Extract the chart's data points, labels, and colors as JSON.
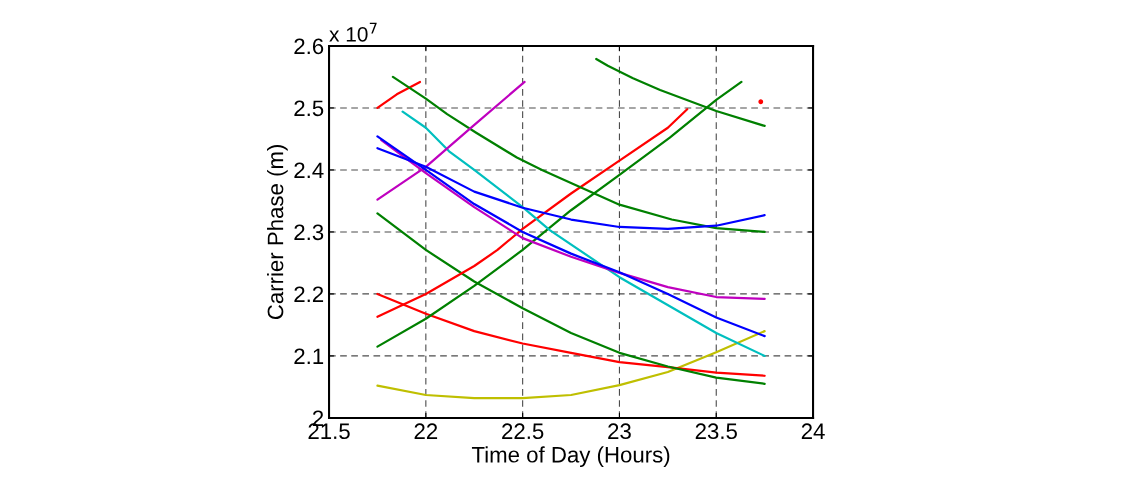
{
  "chart_data": {
    "type": "line",
    "xlabel": "Time of Day (Hours)",
    "ylabel": "Carrier Phase (m)",
    "annotations": [
      "x 10$^{7}$"
    ],
    "xlim": [
      21.5,
      24
    ],
    "xticks": [
      21.5,
      22,
      22.5,
      23,
      23.5,
      24
    ],
    "ylim": [
      2,
      2.6
    ],
    "yticks": [
      2,
      2.1,
      2.2,
      2.3,
      2.4,
      2.5,
      2.6
    ],
    "grid": true,
    "marker": "none",
    "line_style": "solid",
    "series": [
      {
        "color": "#bfbf00",
        "x": [
          21.75,
          22.0,
          22.25,
          22.5,
          22.75,
          23.0,
          23.25,
          23.5,
          23.75
        ],
        "values": [
          2.052,
          2.037,
          2.032,
          2.032,
          2.037,
          2.053,
          2.074,
          2.106,
          2.14
        ]
      },
      {
        "color": "#ff0000",
        "x": [
          21.75,
          22.0,
          22.25,
          22.5,
          22.75,
          23.0,
          23.25,
          23.5,
          23.75
        ],
        "values": [
          2.2,
          2.168,
          2.14,
          2.12,
          2.105,
          2.09,
          2.082,
          2.073,
          2.068
        ]
      },
      {
        "color": "#008000",
        "x": [
          21.75,
          22.0,
          22.25,
          22.5,
          22.75,
          23.0,
          23.25,
          23.5,
          23.75
        ],
        "values": [
          2.33,
          2.271,
          2.22,
          2.177,
          2.137,
          2.105,
          2.083,
          2.065,
          2.055
        ]
      },
      {
        "color": "#ff0000",
        "x": [
          21.75,
          22.0,
          22.25,
          22.37,
          22.5,
          22.75,
          23.0,
          23.25,
          23.35
        ],
        "values": [
          2.163,
          2.2,
          2.245,
          2.271,
          2.305,
          2.362,
          2.415,
          2.468,
          2.498
        ]
      },
      {
        "color": "#ff0000",
        "x": [
          21.75,
          21.85,
          21.97
        ],
        "values": [
          2.5,
          2.522,
          2.542
        ]
      },
      {
        "color": "#008000",
        "x": [
          21.75,
          22.0,
          22.25,
          22.5,
          22.75,
          23.0,
          23.26,
          23.5,
          23.63
        ],
        "values": [
          2.115,
          2.16,
          2.213,
          2.271,
          2.335,
          2.392,
          2.452,
          2.513,
          2.542
        ]
      },
      {
        "color": "#008000",
        "x": [
          22.88,
          22.94,
          23.07,
          23.21,
          23.5,
          23.75
        ],
        "values": [
          2.579,
          2.568,
          2.548,
          2.529,
          2.495,
          2.471
        ]
      },
      {
        "color": "#008000",
        "x": [
          21.83,
          22.0,
          22.11,
          22.26,
          22.47,
          22.6,
          23.0,
          23.27,
          23.5,
          23.75
        ],
        "values": [
          2.55,
          2.515,
          2.49,
          2.46,
          2.42,
          2.4,
          2.344,
          2.32,
          2.306,
          2.3
        ]
      },
      {
        "color": "#00bfbf",
        "x": [
          21.88,
          22.0,
          22.12,
          22.25,
          22.5,
          22.64,
          23.0,
          23.5,
          23.75
        ],
        "values": [
          2.494,
          2.468,
          2.43,
          2.4,
          2.34,
          2.303,
          2.227,
          2.137,
          2.1
        ]
      },
      {
        "color": "#bf00bf",
        "x": [
          21.75,
          22.0,
          22.24,
          22.51
        ],
        "values": [
          2.352,
          2.405,
          2.47,
          2.542
        ]
      },
      {
        "color": "#bf00bf",
        "x": [
          21.77,
          22.0,
          22.25,
          22.5,
          22.75,
          23.0,
          23.25,
          23.5,
          23.75
        ],
        "values": [
          2.448,
          2.395,
          2.34,
          2.29,
          2.26,
          2.234,
          2.211,
          2.195,
          2.192
        ]
      },
      {
        "color": "#0000ff",
        "x": [
          21.75,
          22.0,
          22.25,
          22.5,
          22.75,
          23.0,
          23.25,
          23.5,
          23.75
        ],
        "values": [
          2.454,
          2.4,
          2.345,
          2.3,
          2.265,
          2.235,
          2.2,
          2.162,
          2.132
        ]
      },
      {
        "color": "#0000ff",
        "x": [
          21.75,
          22.0,
          22.25,
          22.5,
          22.75,
          23.0,
          23.25,
          23.5,
          23.75
        ],
        "values": [
          2.435,
          2.405,
          2.365,
          2.339,
          2.32,
          2.308,
          2.305,
          2.31,
          2.327
        ]
      },
      {
        "type": "scatter",
        "color": "#ff0000",
        "x": [
          23.73
        ],
        "values": [
          2.51
        ]
      }
    ]
  }
}
